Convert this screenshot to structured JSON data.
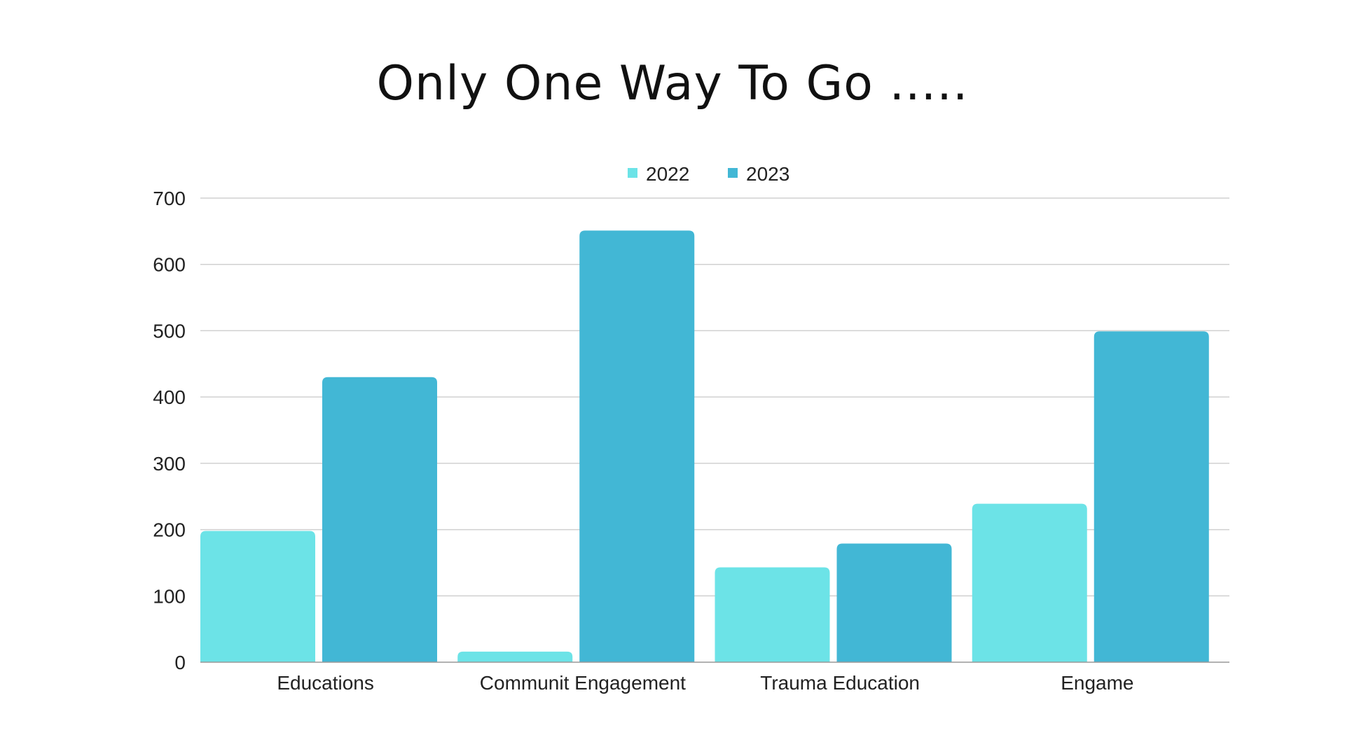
{
  "chart_data": {
    "type": "bar",
    "title": "Only One Way To Go .....",
    "xlabel": "",
    "ylabel": "",
    "categories": [
      "Educations",
      "Communit Engagement",
      "Trauma Education",
      "Engame"
    ],
    "series": [
      {
        "name": "2022",
        "values": [
          198,
          16,
          143,
          239
        ],
        "color": "#6ce3e7"
      },
      {
        "name": "2023",
        "values": [
          430,
          651,
          179,
          499
        ],
        "color": "#42b7d5"
      }
    ],
    "ylim": [
      0,
      700
    ],
    "yticks": [
      0,
      100,
      200,
      300,
      400,
      500,
      600,
      700
    ],
    "grid": true,
    "legend": "top-center",
    "gridColor": "#d0d0d0",
    "axisColor": "#999999"
  }
}
